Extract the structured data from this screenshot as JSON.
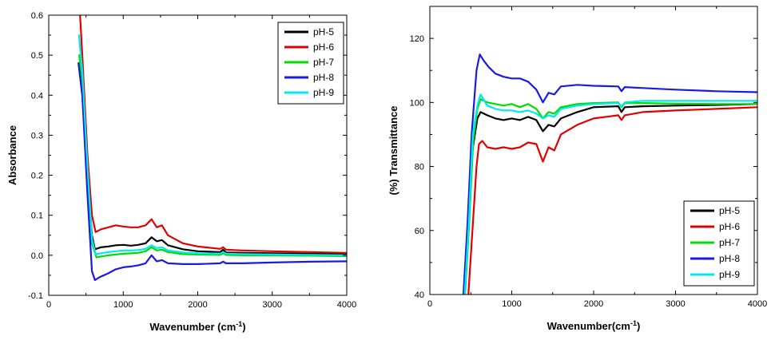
{
  "chart_data": [
    {
      "type": "line",
      "title": "",
      "xlabel": "Wavenumber (cm",
      "xlabel_sup": "-1",
      "xlabel_tail": ")",
      "ylabel": "Absorbance",
      "xlim": [
        0,
        4000
      ],
      "ylim": [
        -0.1,
        0.6
      ],
      "x_ticks": [
        "0",
        "1000",
        "2000",
        "3000",
        "4000"
      ],
      "y_ticks": [
        "-0.1",
        "0.0",
        "0.1",
        "0.2",
        "0.3",
        "0.4",
        "0.5",
        "0.6"
      ],
      "legend_position": "top-right",
      "series": [
        {
          "name": "pH-5",
          "color": "#000000",
          "x": [
            400,
            450,
            520,
            580,
            620,
            700,
            800,
            900,
            1000,
            1100,
            1200,
            1300,
            1380,
            1450,
            1520,
            1600,
            1800,
            2000,
            2300,
            2340,
            2380,
            2600,
            3000,
            3500,
            4000
          ],
          "y": [
            0.48,
            0.4,
            0.2,
            0.05,
            0.015,
            0.02,
            0.022,
            0.025,
            0.026,
            0.024,
            0.026,
            0.03,
            0.045,
            0.035,
            0.038,
            0.025,
            0.015,
            0.01,
            0.008,
            0.014,
            0.007,
            0.006,
            0.005,
            0.004,
            0.004
          ]
        },
        {
          "name": "pH-6",
          "color": "#e00000",
          "x": [
            420,
            450,
            520,
            580,
            630,
            700,
            800,
            900,
            1000,
            1100,
            1200,
            1300,
            1380,
            1450,
            1520,
            1600,
            1800,
            2000,
            2300,
            2340,
            2380,
            2600,
            3000,
            3500,
            4000
          ],
          "y": [
            0.6,
            0.5,
            0.25,
            0.1,
            0.058,
            0.065,
            0.07,
            0.075,
            0.072,
            0.07,
            0.07,
            0.075,
            0.09,
            0.07,
            0.075,
            0.05,
            0.03,
            0.022,
            0.016,
            0.02,
            0.014,
            0.012,
            0.01,
            0.008,
            0.006
          ]
        },
        {
          "name": "pH-7",
          "color": "#00dd00",
          "x": [
            410,
            450,
            520,
            580,
            640,
            700,
            800,
            900,
            1000,
            1100,
            1200,
            1300,
            1380,
            1450,
            1520,
            1600,
            1800,
            2000,
            2300,
            2340,
            2380,
            2600,
            3000,
            3500,
            4000
          ],
          "y": [
            0.5,
            0.42,
            0.2,
            0.03,
            -0.005,
            -0.003,
            0.0,
            0.002,
            0.004,
            0.005,
            0.006,
            0.01,
            0.02,
            0.012,
            0.014,
            0.008,
            0.003,
            0.002,
            0.001,
            0.005,
            0.001,
            0.0,
            0.0,
            -0.001,
            -0.002
          ]
        },
        {
          "name": "pH-8",
          "color": "#1a1ae0",
          "x": [
            400,
            450,
            520,
            580,
            620,
            680,
            800,
            900,
            1000,
            1100,
            1200,
            1300,
            1380,
            1450,
            1520,
            1600,
            1800,
            2000,
            2300,
            2340,
            2380,
            2600,
            3000,
            3500,
            4000
          ],
          "y": [
            0.48,
            0.4,
            0.15,
            -0.04,
            -0.062,
            -0.055,
            -0.045,
            -0.035,
            -0.03,
            -0.028,
            -0.025,
            -0.02,
            0.0,
            -0.015,
            -0.012,
            -0.02,
            -0.022,
            -0.022,
            -0.02,
            -0.016,
            -0.02,
            -0.02,
            -0.018,
            -0.016,
            -0.015
          ]
        },
        {
          "name": "pH-9",
          "color": "#00e8f0",
          "x": [
            405,
            450,
            520,
            580,
            630,
            700,
            800,
            900,
            1000,
            1100,
            1200,
            1300,
            1380,
            1450,
            1520,
            1600,
            1800,
            2000,
            2300,
            2340,
            2380,
            2600,
            3000,
            3500,
            4000
          ],
          "y": [
            0.55,
            0.46,
            0.22,
            0.04,
            0.003,
            0.005,
            0.008,
            0.01,
            0.012,
            0.012,
            0.013,
            0.016,
            0.025,
            0.018,
            0.02,
            0.012,
            0.007,
            0.005,
            0.004,
            0.008,
            0.004,
            0.003,
            0.002,
            0.001,
            0.0
          ]
        }
      ]
    },
    {
      "type": "line",
      "title": "",
      "xlabel": "Wavenumber(cm",
      "xlabel_sup": "-1",
      "xlabel_tail": ")",
      "ylabel": "(%) Transmittance",
      "xlim": [
        0,
        4000
      ],
      "ylim": [
        40,
        130
      ],
      "x_ticks": [
        "0",
        "1000",
        "2000",
        "3000",
        "4000"
      ],
      "y_ticks": [
        "40",
        "60",
        "80",
        "100",
        "120"
      ],
      "legend_position": "bottom-right",
      "series": [
        {
          "name": "pH-5",
          "color": "#000000",
          "x": [
            420,
            470,
            520,
            580,
            620,
            700,
            800,
            900,
            1000,
            1100,
            1200,
            1300,
            1380,
            1450,
            1520,
            1600,
            1800,
            2000,
            2300,
            2340,
            2380,
            2600,
            3000,
            3500,
            4000
          ],
          "y": [
            40,
            60,
            85,
            95,
            97,
            96,
            95,
            94.5,
            95,
            94.5,
            95.5,
            94.5,
            91,
            93,
            92.5,
            95,
            97,
            98.5,
            98.8,
            97,
            98.5,
            98.8,
            99,
            99.2,
            99.5
          ]
        },
        {
          "name": "pH-6",
          "color": "#e00000",
          "x": [
            470,
            520,
            570,
            600,
            640,
            700,
            800,
            900,
            1000,
            1100,
            1200,
            1300,
            1380,
            1450,
            1520,
            1600,
            1800,
            2000,
            2300,
            2340,
            2380,
            2600,
            3000,
            3500,
            4000
          ],
          "y": [
            40,
            60,
            80,
            87,
            88,
            86,
            85.5,
            86,
            85.5,
            86,
            87.5,
            87,
            81.5,
            86,
            85,
            90,
            93,
            95,
            96,
            94.5,
            96,
            97,
            97.5,
            98,
            98.5
          ]
        },
        {
          "name": "pH-7",
          "color": "#00dd00",
          "x": [
            430,
            480,
            530,
            580,
            620,
            700,
            800,
            900,
            1000,
            1100,
            1200,
            1300,
            1380,
            1450,
            1520,
            1600,
            1800,
            2000,
            2300,
            2340,
            2380,
            2600,
            3000,
            3500,
            4000
          ],
          "y": [
            40,
            62,
            88,
            98,
            101,
            100,
            99.5,
            99,
            99.5,
            98.5,
            99.5,
            98,
            95,
            97,
            96.5,
            98.5,
            99.5,
            99.8,
            100,
            98.5,
            99.8,
            99.8,
            99.6,
            99.5,
            99.5
          ]
        },
        {
          "name": "pH-8",
          "color": "#1a1ae0",
          "x": [
            410,
            460,
            510,
            570,
            610,
            660,
            720,
            800,
            900,
            1000,
            1100,
            1200,
            1300,
            1380,
            1450,
            1520,
            1600,
            1800,
            2000,
            2300,
            2340,
            2380,
            2600,
            3000,
            3500,
            4000
          ],
          "y": [
            40,
            62,
            90,
            110,
            115,
            113,
            111,
            109,
            108,
            107.5,
            107.5,
            106.5,
            104,
            100,
            103,
            102.5,
            105,
            105.5,
            105.2,
            105,
            103.5,
            104.8,
            104.5,
            104,
            103.5,
            103.2
          ]
        },
        {
          "name": "pH-9",
          "color": "#00e8f0",
          "x": [
            425,
            475,
            525,
            580,
            620,
            700,
            800,
            900,
            1000,
            1100,
            1200,
            1300,
            1380,
            1450,
            1520,
            1600,
            1800,
            2000,
            2300,
            2340,
            2380,
            2600,
            3000,
            3500,
            4000
          ],
          "y": [
            40,
            62,
            90,
            99,
            102.5,
            99,
            98,
            97.5,
            97.5,
            97,
            97.5,
            96.5,
            95,
            96,
            95.5,
            98,
            99,
            99.5,
            99.8,
            98.8,
            100,
            100.5,
            100.5,
            100.5,
            100.5
          ]
        }
      ]
    }
  ]
}
